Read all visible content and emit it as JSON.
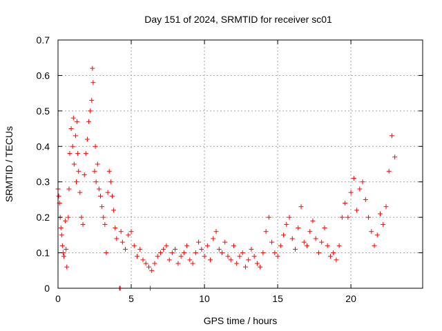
{
  "chart_data": {
    "type": "scatter",
    "title": "Day 151 of 2024, SRMTID for receiver sc01",
    "xlabel": "GPS time / hours",
    "ylabel": "SRMTID / TECUs",
    "xlim": [
      0,
      24.9
    ],
    "ylim": [
      0,
      0.7
    ],
    "x_ticks": [
      0,
      5,
      10,
      15,
      20
    ],
    "x_tick_labels": [
      "0",
      "5",
      "10",
      "15",
      "20"
    ],
    "y_ticks": [
      0,
      0.1,
      0.2,
      0.3,
      0.4,
      0.5,
      0.6,
      0.7
    ],
    "y_tick_labels": [
      "0",
      "0.1",
      "0.2",
      "0.3",
      "0.4",
      "0.5",
      "0.6",
      "0.7"
    ],
    "grid": true,
    "marker": "+",
    "color": "#ff0000",
    "series": [
      {
        "name": "SRMTID",
        "x": [
          0.0,
          0.05,
          0.1,
          0.15,
          0.2,
          0.25,
          0.3,
          0.35,
          0.4,
          0.5,
          0.55,
          0.6,
          0.7,
          0.75,
          0.8,
          0.9,
          1.0,
          1.05,
          1.1,
          1.2,
          1.25,
          1.3,
          1.35,
          1.4,
          1.5,
          1.6,
          1.7,
          1.8,
          1.9,
          2.0,
          2.1,
          2.2,
          2.3,
          2.35,
          2.4,
          2.5,
          2.55,
          2.6,
          2.7,
          2.8,
          2.9,
          3.0,
          3.1,
          3.2,
          3.3,
          3.4,
          3.5,
          3.6,
          3.7,
          3.8,
          3.9,
          4.0,
          4.2,
          4.25,
          4.3,
          4.4,
          4.6,
          4.8,
          5.0,
          5.2,
          5.4,
          5.6,
          5.8,
          6.0,
          6.2,
          6.3,
          6.4,
          6.6,
          6.8,
          7.0,
          7.2,
          7.4,
          7.6,
          7.8,
          8.0,
          8.2,
          8.4,
          8.6,
          8.8,
          9.0,
          9.2,
          9.4,
          9.6,
          9.8,
          10.0,
          10.2,
          10.4,
          10.6,
          10.8,
          11.0,
          11.2,
          11.4,
          11.6,
          11.8,
          12.0,
          12.2,
          12.4,
          12.6,
          12.8,
          13.0,
          13.2,
          13.4,
          13.6,
          13.8,
          14.0,
          14.2,
          14.4,
          14.6,
          14.8,
          15.0,
          15.2,
          15.4,
          15.6,
          15.8,
          16.0,
          16.2,
          16.4,
          16.6,
          16.8,
          17.0,
          17.2,
          17.4,
          17.6,
          17.8,
          18.0,
          18.2,
          18.4,
          18.6,
          18.8,
          19.0,
          19.2,
          19.4,
          19.6,
          19.8,
          20.0,
          20.2,
          20.4,
          20.6,
          20.8,
          21.0,
          21.2,
          21.4,
          21.6,
          21.8,
          22.0,
          22.2,
          22.4,
          22.6,
          22.8,
          23.0
        ],
        "y": [
          0.28,
          0.26,
          0.24,
          0.2,
          0.17,
          0.15,
          0.12,
          0.1,
          0.09,
          0.19,
          0.11,
          0.06,
          0.2,
          0.28,
          0.38,
          0.45,
          0.4,
          0.48,
          0.35,
          0.43,
          0.3,
          0.47,
          0.38,
          0.33,
          0.27,
          0.2,
          0.18,
          0.32,
          0.38,
          0.42,
          0.47,
          0.5,
          0.53,
          0.62,
          0.58,
          0.33,
          0.4,
          0.3,
          0.35,
          0.28,
          0.26,
          0.23,
          0.2,
          0.18,
          0.1,
          0.27,
          0.33,
          0.3,
          0.26,
          0.22,
          0.17,
          0.14,
          0.0,
          0.0,
          0.16,
          0.13,
          0.11,
          0.15,
          0.16,
          0.12,
          0.09,
          0.11,
          0.08,
          0.07,
          0.06,
          0.0,
          0.05,
          0.07,
          0.09,
          0.1,
          0.11,
          0.12,
          0.08,
          0.1,
          0.11,
          0.07,
          0.09,
          0.1,
          0.12,
          0.08,
          0.07,
          0.1,
          0.13,
          0.11,
          0.09,
          0.12,
          0.08,
          0.14,
          0.16,
          0.11,
          0.1,
          0.13,
          0.09,
          0.08,
          0.12,
          0.07,
          0.09,
          0.1,
          0.06,
          0.08,
          0.11,
          0.09,
          0.07,
          0.06,
          0.1,
          0.16,
          0.2,
          0.13,
          0.1,
          0.09,
          0.12,
          0.15,
          0.18,
          0.2,
          0.14,
          0.11,
          0.17,
          0.23,
          0.13,
          0.12,
          0.16,
          0.19,
          0.14,
          0.1,
          0.13,
          0.17,
          0.12,
          0.09,
          0.1,
          0.08,
          0.12,
          0.2,
          0.24,
          0.2,
          0.27,
          0.31,
          0.22,
          0.28,
          0.3,
          0.25,
          0.2,
          0.16,
          0.12,
          0.15,
          0.21,
          0.18,
          0.23,
          0.33,
          0.43,
          0.37
        ]
      }
    ]
  }
}
